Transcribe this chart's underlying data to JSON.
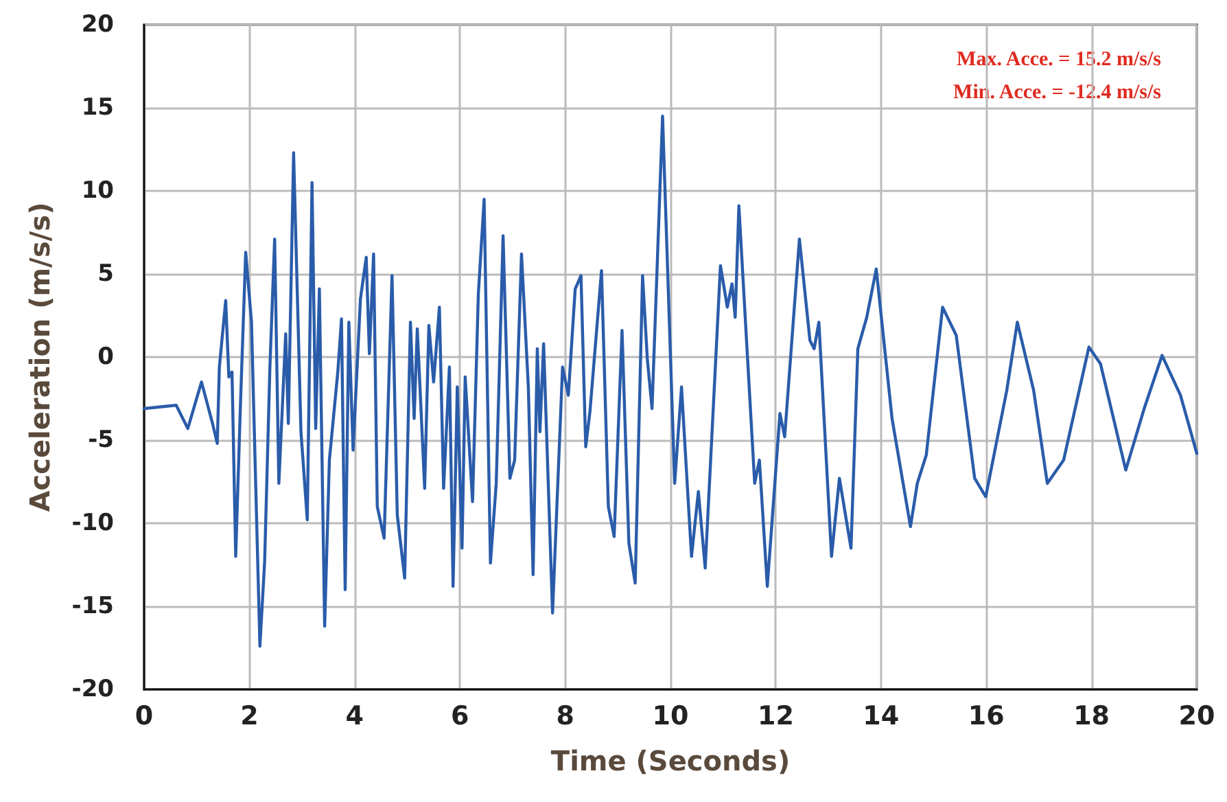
{
  "chart_data": {
    "type": "line",
    "xlabel": "Time (Seconds)",
    "ylabel": "Acceleration (m/s/s)",
    "annotations": [
      "Max. Acce. = 15.2 m/s/s",
      "Min. Acce. = -12.4 m/s/s"
    ],
    "xlim": [
      0,
      20
    ],
    "xticks": [
      0,
      2,
      4,
      6,
      8,
      10,
      12,
      14,
      16,
      18,
      20
    ],
    "ylim": [
      -20,
      20
    ],
    "yticks": [
      -20,
      -15,
      -10,
      -5,
      0,
      5,
      10,
      15,
      20
    ],
    "grid": true,
    "marker": "none",
    "line_style": "solid",
    "series": [
      {
        "color": "#2a5caa",
        "x": [
          0,
          0.61,
          0.83,
          1.09,
          1.3,
          1.39,
          1.43,
          1.55,
          1.61,
          1.67,
          1.74,
          1.83,
          1.93,
          2.04,
          2.2,
          2.29,
          2.39,
          2.48,
          2.56,
          2.69,
          2.74,
          2.84,
          2.98,
          3.1,
          3.19,
          3.26,
          3.33,
          3.43,
          3.52,
          3.68,
          3.75,
          3.82,
          3.89,
          3.97,
          4.11,
          4.22,
          4.28,
          4.36,
          4.43,
          4.56,
          4.71,
          4.81,
          4.95,
          5.06,
          5.13,
          5.19,
          5.33,
          5.41,
          5.5,
          5.61,
          5.69,
          5.8,
          5.87,
          5.95,
          6.04,
          6.1,
          6.24,
          6.35,
          6.46,
          6.58,
          6.69,
          6.82,
          6.95,
          7.04,
          7.17,
          7.3,
          7.39,
          7.47,
          7.52,
          7.59,
          7.76,
          7.87,
          7.95,
          8.06,
          8.19,
          8.3,
          8.39,
          8.47,
          8.69,
          8.82,
          8.93,
          9.08,
          9.21,
          9.33,
          9.47,
          9.56,
          9.65,
          9.85,
          10.08,
          10.21,
          10.4,
          10.53,
          10.66,
          10.95,
          11.08,
          11.17,
          11.23,
          11.3,
          11.6,
          11.69,
          11.84,
          12.08,
          12.17,
          12.45,
          12.65,
          12.73,
          12.82,
          13.06,
          13.21,
          13.43,
          13.56,
          13.73,
          13.91,
          14.21,
          14.56,
          14.69,
          14.86,
          15.17,
          15.43,
          15.78,
          15.99,
          16.39,
          16.59,
          16.9,
          17.16,
          17.47,
          17.95,
          18.17,
          18.65,
          19.0,
          19.34,
          19.69,
          20.0
        ],
        "values": [
          -3.1,
          -2.9,
          -4.3,
          -1.5,
          -4.0,
          -5.2,
          -0.6,
          3.4,
          -1.2,
          -0.9,
          -12.0,
          -2.9,
          6.3,
          2.1,
          -17.4,
          -12.3,
          -0.6,
          7.1,
          -7.6,
          1.4,
          -4.0,
          12.3,
          -4.5,
          -9.8,
          10.5,
          -4.3,
          4.1,
          -16.2,
          -6.2,
          -0.9,
          2.3,
          -14.0,
          2.1,
          -5.6,
          3.5,
          6.0,
          0.2,
          6.2,
          -9.0,
          -10.9,
          4.9,
          -9.5,
          -13.3,
          2.1,
          -3.7,
          1.7,
          -7.9,
          1.9,
          -1.5,
          3.0,
          -7.9,
          -0.6,
          -13.8,
          -1.8,
          -11.5,
          -1.2,
          -8.7,
          3.8,
          9.5,
          -12.4,
          -7.6,
          7.3,
          -7.3,
          -6.2,
          6.2,
          -1.8,
          -13.1,
          0.5,
          -4.5,
          0.8,
          -15.4,
          -6.8,
          -0.6,
          -2.3,
          4.1,
          4.9,
          -5.4,
          -3.3,
          5.2,
          -9.0,
          -10.8,
          1.6,
          -11.2,
          -13.6,
          4.9,
          -0.1,
          -3.1,
          14.5,
          -7.6,
          -1.8,
          -12.0,
          -8.1,
          -12.7,
          5.5,
          3.0,
          4.4,
          2.4,
          9.1,
          -7.6,
          -6.2,
          -13.8,
          -3.4,
          -4.8,
          7.1,
          1.0,
          0.5,
          2.1,
          -12.0,
          -7.3,
          -11.5,
          0.5,
          2.4,
          5.3,
          -3.7,
          -10.2,
          -7.6,
          -5.9,
          3.0,
          1.3,
          -7.3,
          -8.4,
          -2.0,
          2.1,
          -2.0,
          -7.6,
          -6.2,
          0.6,
          -0.4,
          -6.8,
          -3.1,
          0.1,
          -2.3,
          -5.8
        ]
      }
    ]
  }
}
